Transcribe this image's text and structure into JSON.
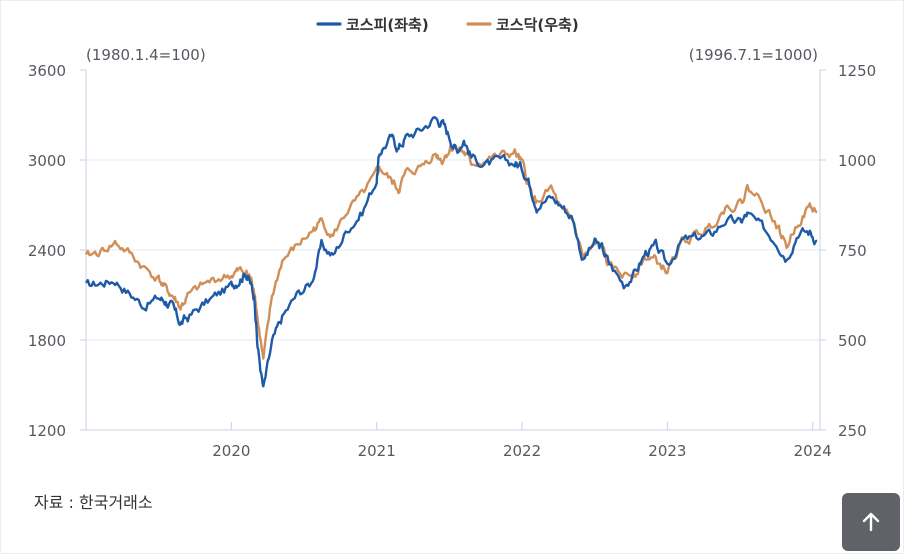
{
  "chart_data": {
    "type": "line",
    "legend": {
      "placement": "top-center",
      "items": [
        {
          "label": "코스피(좌축)",
          "color": "#1f5aa6"
        },
        {
          "label": "코스닥(우축)",
          "color": "#d08f59"
        }
      ]
    },
    "left_axis": {
      "note": "(1980.1.4=100)",
      "ticks": [
        "3600",
        "3000",
        "2400",
        "1800",
        "1200"
      ],
      "ylim": [
        1200,
        3600
      ]
    },
    "right_axis": {
      "note": "(1996.7.1=1000)",
      "ticks": [
        "1250",
        "1000",
        "750",
        "500",
        "250"
      ],
      "ylim": [
        250,
        1250
      ]
    },
    "x_ticks": [
      "2020",
      "2021",
      "2022",
      "2023",
      "2024"
    ],
    "xlim": [
      2019.0,
      2024.05
    ],
    "grid": "horizontal",
    "series": [
      {
        "name": "코스피(좌축)",
        "axis": "left",
        "color": "#1f5aa6",
        "x": [
          2019.0,
          2019.1,
          2019.2,
          2019.3,
          2019.4,
          2019.5,
          2019.55,
          2019.6,
          2019.65,
          2019.7,
          2019.8,
          2019.9,
          2020.0,
          2020.05,
          2020.1,
          2020.13,
          2020.16,
          2020.18,
          2020.22,
          2020.28,
          2020.35,
          2020.45,
          2020.55,
          2020.62,
          2020.7,
          2020.8,
          2020.9,
          2021.0,
          2021.02,
          2021.1,
          2021.15,
          2021.2,
          2021.3,
          2021.4,
          2021.45,
          2021.5,
          2021.55,
          2021.6,
          2021.65,
          2021.75,
          2021.85,
          2021.95,
          2022.0,
          2022.05,
          2022.1,
          2022.2,
          2022.28,
          2022.35,
          2022.42,
          2022.5,
          2022.55,
          2022.6,
          2022.7,
          2022.78,
          2022.85,
          2022.92,
          2023.0,
          2023.1,
          2023.2,
          2023.3,
          2023.4,
          2023.5,
          2023.55,
          2023.65,
          2023.75,
          2023.82,
          2023.9,
          2023.98,
          2024.03
        ],
        "values": [
          2160,
          2180,
          2200,
          2110,
          2030,
          2080,
          2060,
          2010,
          1910,
          1950,
          2030,
          2100,
          2160,
          2200,
          2250,
          2180,
          2080,
          1760,
          1470,
          1780,
          1950,
          2100,
          2180,
          2430,
          2360,
          2540,
          2650,
          2870,
          3050,
          3150,
          3080,
          3150,
          3200,
          3280,
          3250,
          3160,
          3060,
          3140,
          3020,
          2970,
          2990,
          2980,
          2950,
          2850,
          2700,
          2750,
          2690,
          2610,
          2330,
          2450,
          2410,
          2310,
          2170,
          2250,
          2380,
          2420,
          2300,
          2460,
          2480,
          2500,
          2600,
          2580,
          2640,
          2550,
          2460,
          2350,
          2520,
          2520,
          2460
        ]
      },
      {
        "name": "코스닥(우축)",
        "axis": "right",
        "color": "#d08f59",
        "x": [
          2019.0,
          2019.1,
          2019.2,
          2019.3,
          2019.4,
          2019.5,
          2019.55,
          2019.6,
          2019.65,
          2019.7,
          2019.8,
          2019.9,
          2020.0,
          2020.05,
          2020.1,
          2020.13,
          2020.16,
          2020.18,
          2020.22,
          2020.28,
          2020.35,
          2020.45,
          2020.55,
          2020.62,
          2020.7,
          2020.8,
          2020.9,
          2021.0,
          2021.02,
          2021.1,
          2021.15,
          2021.2,
          2021.3,
          2021.4,
          2021.45,
          2021.5,
          2021.55,
          2021.6,
          2021.65,
          2021.75,
          2021.85,
          2021.95,
          2022.0,
          2022.05,
          2022.1,
          2022.2,
          2022.28,
          2022.35,
          2022.42,
          2022.5,
          2022.55,
          2022.6,
          2022.7,
          2022.78,
          2022.85,
          2022.92,
          2023.0,
          2023.1,
          2023.2,
          2023.3,
          2023.4,
          2023.5,
          2023.55,
          2023.65,
          2023.75,
          2023.82,
          2023.9,
          2023.98,
          2024.03
        ],
        "values": [
          730,
          745,
          770,
          740,
          700,
          670,
          640,
          620,
          590,
          620,
          650,
          670,
          680,
          690,
          690,
          670,
          640,
          560,
          440,
          620,
          720,
          760,
          800,
          830,
          790,
          860,
          900,
          960,
          980,
          940,
          920,
          960,
          980,
          1020,
          1000,
          1030,
          1040,
          1020,
          990,
          1000,
          1010,
          1020,
          990,
          920,
          880,
          920,
          850,
          830,
          730,
          760,
          760,
          700,
          680,
          690,
          730,
          720,
          690,
          770,
          790,
          820,
          870,
          880,
          920,
          890,
          820,
          760,
          830,
          870,
          855
        ]
      }
    ]
  },
  "source": "자료 :  한국거래소"
}
